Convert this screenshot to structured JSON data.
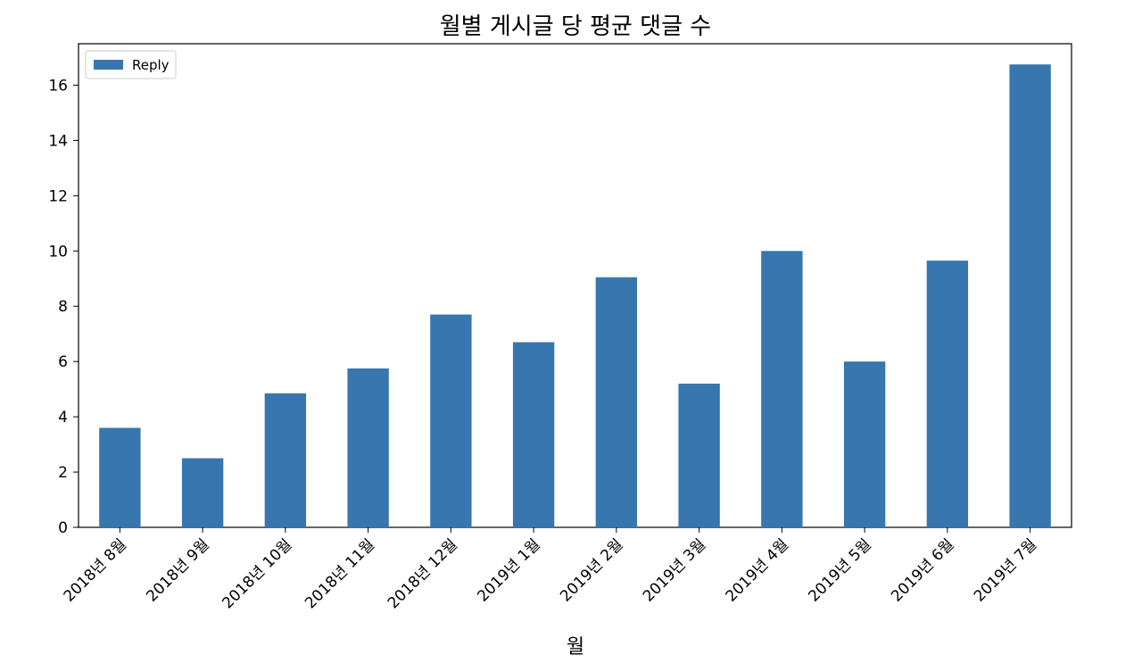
{
  "chart_data": {
    "type": "bar",
    "title": "월별 게시글 당 평균 댓글 수",
    "xlabel": "월",
    "ylabel": "",
    "categories": [
      "2018년 8월",
      "2018년 9월",
      "2018년 10월",
      "2018년 11월",
      "2018년 12월",
      "2019년 1월",
      "2019년 2월",
      "2019년 3월",
      "2019년 4월",
      "2019년 5월",
      "2019년 6월",
      "2019년 7월"
    ],
    "series": [
      {
        "name": "Reply",
        "color": "#3776af",
        "values": [
          3.6,
          2.5,
          4.85,
          5.75,
          7.7,
          6.7,
          9.05,
          5.2,
          10.0,
          6.0,
          9.65,
          16.75
        ]
      }
    ],
    "yticks": [
      "0",
      "2",
      "4",
      "6",
      "8",
      "10",
      "12",
      "14",
      "16"
    ],
    "ylim": [
      0,
      17.5
    ],
    "grid": false,
    "legend_position": "top-left"
  }
}
